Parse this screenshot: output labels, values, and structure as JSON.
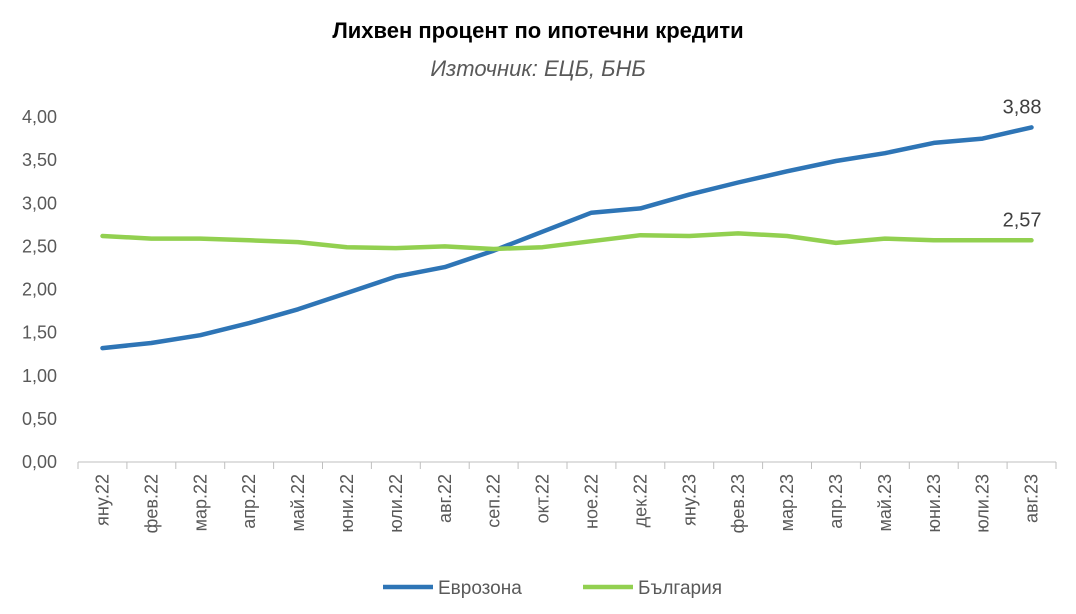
{
  "chart_data": {
    "type": "line",
    "title": "Лихвен процент по ипотечни кредити",
    "subtitle": "Източник: ЕЦБ, БНБ",
    "categories": [
      "яну.22",
      "фев.22",
      "мар.22",
      "апр.22",
      "май.22",
      "юни.22",
      "юли.22",
      "авг.22",
      "сеп.22",
      "окт.22",
      "ное.22",
      "дек.22",
      "яну.23",
      "фев.23",
      "мар.23",
      "апр.23",
      "май.23",
      "юни.23",
      "юли.23",
      "авг.23"
    ],
    "y_ticks": [
      "0,00",
      "0,50",
      "1,00",
      "1,50",
      "2,00",
      "2,50",
      "3,00",
      "3,50",
      "4,00"
    ],
    "ylim": [
      0,
      4
    ],
    "grid": false,
    "legend_position": "bottom",
    "series": [
      {
        "name": "Еврозона",
        "color": "#2E75B6",
        "values": [
          1.32,
          1.38,
          1.47,
          1.61,
          1.77,
          1.96,
          2.15,
          2.26,
          2.45,
          2.67,
          2.89,
          2.94,
          3.1,
          3.24,
          3.37,
          3.49,
          3.58,
          3.7,
          3.75,
          3.88
        ],
        "end_label": "3,88"
      },
      {
        "name": "България",
        "color": "#92D050",
        "values": [
          2.62,
          2.59,
          2.59,
          2.57,
          2.55,
          2.49,
          2.48,
          2.5,
          2.47,
          2.49,
          2.56,
          2.63,
          2.62,
          2.65,
          2.62,
          2.54,
          2.59,
          2.57,
          2.57,
          2.57
        ],
        "end_label": "2,57"
      }
    ]
  }
}
